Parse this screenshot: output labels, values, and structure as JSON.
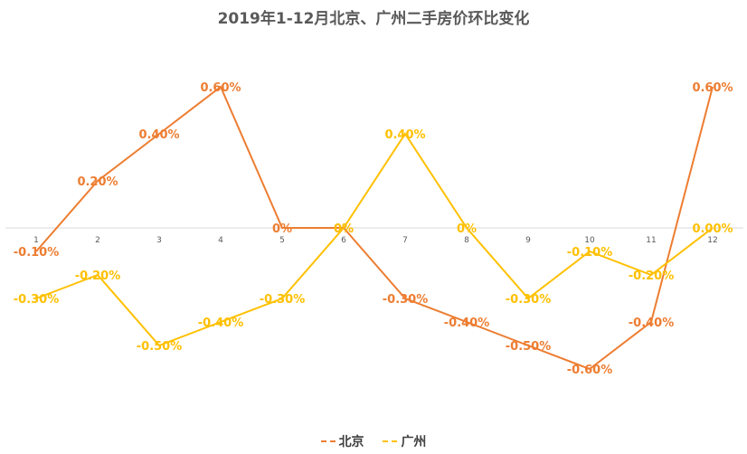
{
  "chart_data": {
    "type": "line",
    "title": "2019年1-12月北京、广州二手房价环比变化",
    "categories": [
      "1",
      "2",
      "3",
      "4",
      "5",
      "6",
      "7",
      "8",
      "9",
      "10",
      "11",
      "12"
    ],
    "series": [
      {
        "name": "北京",
        "color": "#ED7D31",
        "values": [
          -0.1,
          0.2,
          0.4,
          0.6,
          0,
          0,
          -0.3,
          -0.4,
          -0.5,
          -0.6,
          -0.4,
          0.6
        ],
        "labels": [
          "-0.10%",
          "0.20%",
          "0.40%",
          "0.60%",
          "0%",
          "0%",
          "-0.30%",
          "-0.40%",
          "-0.50%",
          "-0.60%",
          "-0.40%",
          "0.60%"
        ]
      },
      {
        "name": "广州",
        "color": "#FFC000",
        "values": [
          -0.3,
          -0.2,
          -0.5,
          -0.4,
          -0.3,
          0,
          0.4,
          0,
          -0.3,
          -0.1,
          -0.2,
          0.0
        ],
        "labels": [
          "-0.30%",
          "-0.20%",
          "-0.50%",
          "-0.40%",
          "-0.30%",
          "0%",
          "0.40%",
          "0%",
          "-0.30%",
          "-0.10%",
          "-0.20%",
          "0.00%"
        ]
      }
    ],
    "ylim": [
      -0.8,
      0.8
    ],
    "grid": false,
    "legend_position": "bottom"
  }
}
